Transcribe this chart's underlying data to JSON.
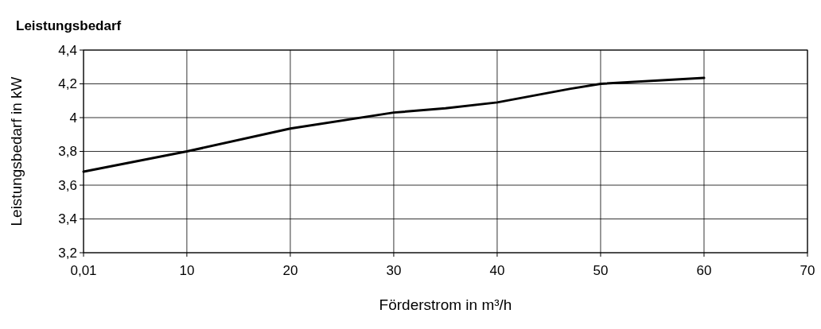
{
  "chart_data": {
    "type": "line",
    "title": "Leistungsbedarf",
    "xlabel": "Förderstrom in m³/h",
    "ylabel": "Leistungsbedarf in kW",
    "x": [
      0.01,
      10,
      20,
      30,
      35,
      40,
      47,
      50,
      60
    ],
    "series": [
      {
        "color": "#000000",
        "values": [
          3.68,
          3.8,
          3.935,
          4.03,
          4.055,
          4.09,
          4.17,
          4.2,
          4.235
        ]
      }
    ],
    "xlim": [
      0.01,
      70
    ],
    "xticks": [
      {
        "value": 0.01,
        "label": "0,01"
      },
      10,
      20,
      30,
      40,
      50,
      60,
      70
    ],
    "ylim": [
      3.2,
      4.4
    ],
    "yticks": [
      {
        "value": 3.2,
        "label": "3,2"
      },
      {
        "value": 3.4,
        "label": "3,4"
      },
      {
        "value": 3.6,
        "label": "3,6"
      },
      {
        "value": 3.8,
        "label": "3,8"
      },
      4,
      {
        "value": 4.2,
        "label": "4,2"
      },
      {
        "value": 4.4,
        "label": "4,4"
      }
    ],
    "grid": true,
    "marker": "none",
    "line_style": "solid"
  }
}
